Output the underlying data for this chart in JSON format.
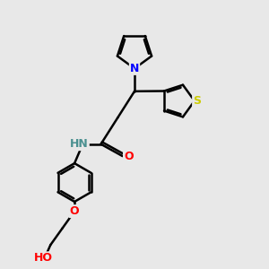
{
  "bg_color": "#e8e8e8",
  "line_color": "black",
  "bond_width": 1.8,
  "atom_colors": {
    "N": "#0000ff",
    "O": "#ff0000",
    "S": "#cccc00",
    "H_teal": "#4a9090",
    "C": "black"
  },
  "font_size": 9
}
